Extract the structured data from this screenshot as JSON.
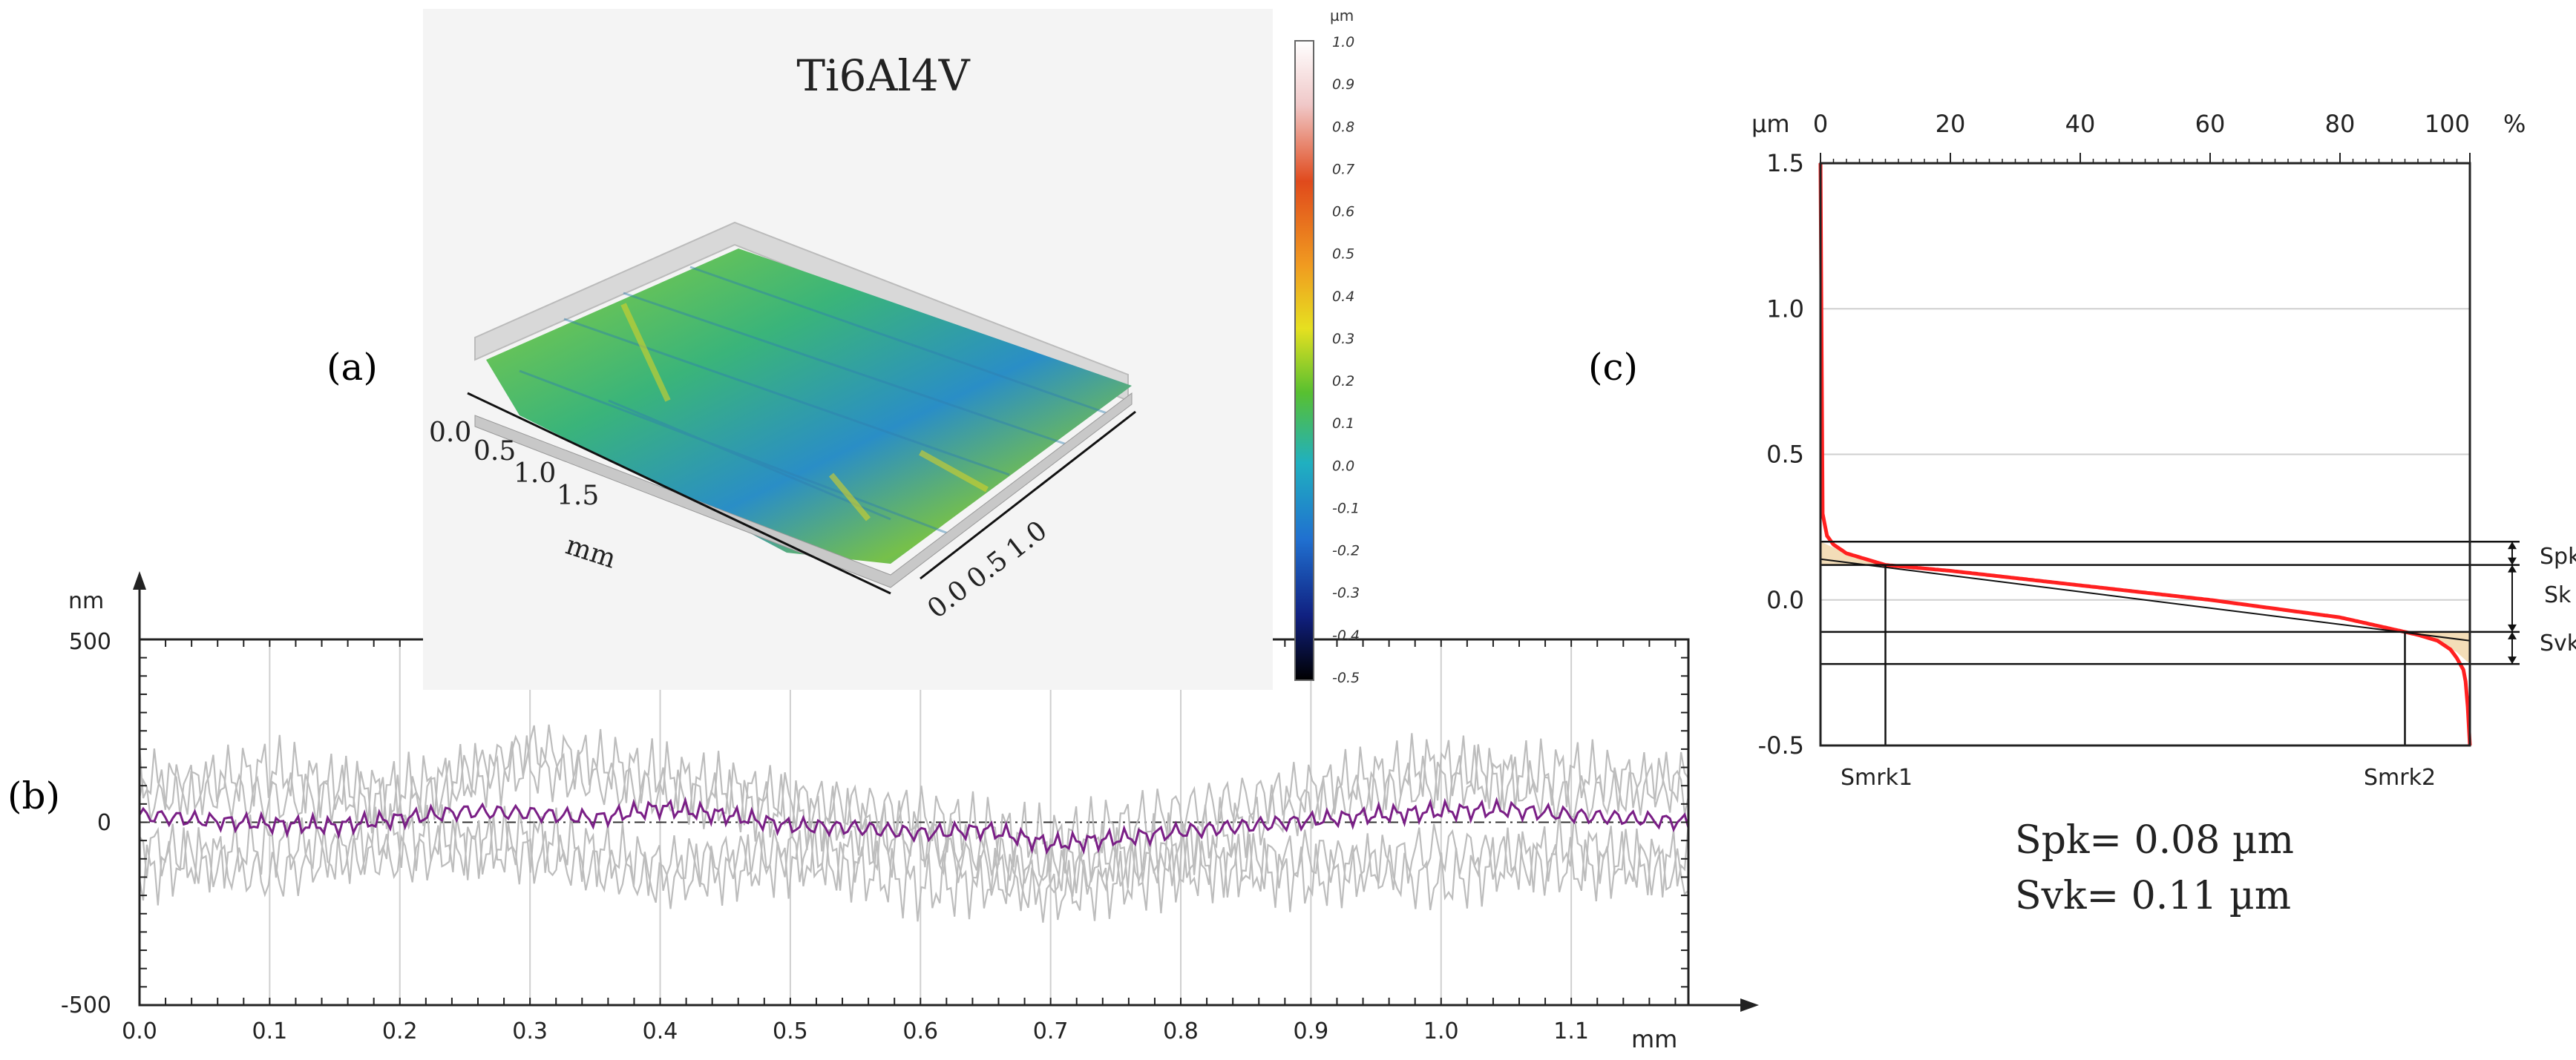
{
  "panel_labels": {
    "a": "(a)",
    "b": "(b)",
    "c": "(c)"
  },
  "colors": {
    "profile_gray": "#bdbdbd",
    "profile_mean": "#7a1f86",
    "curve_red": "#ff2020",
    "fill_tan": "#f3ddb8",
    "grid": "#cfcfcf",
    "inset_bg": "#f4f4f4"
  },
  "inset": {
    "title": "Ti6Al4V",
    "x_axis_ticks": [
      "0.0",
      "0.5",
      "1.0",
      "1.5"
    ],
    "x_axis_unit": "mm",
    "y_axis_ticks": [
      "0.0",
      "0.5",
      "1.0"
    ],
    "colorbar_unit": "µm",
    "colorbar_ticks": [
      "1.0",
      "0.9",
      "0.8",
      "0.7",
      "0.6",
      "0.5",
      "0.4",
      "0.3",
      "0.2",
      "0.1",
      "0.0",
      "-0.1",
      "-0.2",
      "-0.3",
      "-0.4",
      "-0.5"
    ]
  },
  "profile_panel": {
    "y_unit": "nm",
    "x_unit": "mm",
    "y_ticks": [
      "500",
      "0",
      "-500"
    ],
    "x_ticks": [
      "0.0",
      "0.1",
      "0.2",
      "0.3",
      "0.4",
      "0.5",
      "0.6",
      "0.7",
      "0.8",
      "0.9",
      "1.0",
      "1.1"
    ]
  },
  "curve_panel": {
    "y_unit": "µm",
    "x_unit": "%",
    "y_ticks": [
      "1.5",
      "1.0",
      "0.5",
      "0.0",
      "-0.5"
    ],
    "x_ticks": [
      "0",
      "20",
      "40",
      "60",
      "80",
      "100"
    ],
    "region_labels": [
      "Spk",
      "Sk",
      "Svk"
    ],
    "smr_labels": [
      "Smrk1",
      "Smrk2"
    ],
    "results": [
      "Spk= 0.08 µm",
      "Svk= 0.11 µm"
    ]
  },
  "chart_data": [
    {
      "type": "line",
      "title": "",
      "xlabel": "mm",
      "ylabel": "nm",
      "xlim": [
        0,
        1.19
      ],
      "ylim": [
        -500,
        500
      ],
      "grid": true,
      "series": [
        {
          "x": [
            0,
            0.05,
            0.1,
            0.15,
            0.2,
            0.25,
            0.3,
            0.35,
            0.4,
            0.45,
            0.5,
            0.55,
            0.6,
            0.65,
            0.7,
            0.75,
            0.8,
            0.85,
            0.9,
            0.95,
            1.0,
            1.05,
            1.1,
            1.15,
            1.19
          ],
          "values": [
            20,
            5,
            -5,
            -10,
            10,
            30,
            25,
            10,
            40,
            20,
            -10,
            -15,
            -30,
            -20,
            -60,
            -45,
            -25,
            -10,
            5,
            20,
            30,
            35,
            20,
            10,
            0
          ]
        },
        {
          "x": [
            0,
            0.1,
            0.2,
            0.3,
            0.4,
            0.5,
            0.6,
            0.7,
            0.8,
            0.9,
            1.0,
            1.1,
            1.19
          ],
          "values": [
            120,
            60,
            90,
            150,
            80,
            30,
            -40,
            -120,
            -60,
            50,
            110,
            140,
            90
          ]
        },
        {
          "x": [
            0,
            0.1,
            0.2,
            0.3,
            0.4,
            0.5,
            0.6,
            0.7,
            0.8,
            0.9,
            1.0,
            1.1,
            1.19
          ],
          "values": [
            -140,
            -60,
            -100,
            -40,
            -120,
            -80,
            -180,
            -150,
            -90,
            -160,
            -70,
            -130,
            -100
          ]
        },
        {
          "x": [
            0,
            0.1,
            0.2,
            0.3,
            0.4,
            0.5,
            0.6,
            0.7,
            0.8,
            0.9,
            1.0,
            1.1,
            1.19
          ],
          "values": [
            60,
            150,
            40,
            200,
            130,
            60,
            20,
            -50,
            30,
            90,
            160,
            60,
            120
          ]
        },
        {
          "x": [
            0,
            0.1,
            0.2,
            0.3,
            0.4,
            0.5,
            0.6,
            0.7,
            0.8,
            0.9,
            1.0,
            1.1,
            1.19
          ],
          "values": [
            -60,
            -150,
            -30,
            -90,
            -160,
            -110,
            -60,
            -200,
            -140,
            -90,
            -170,
            -60,
            -150
          ]
        }
      ]
    },
    {
      "type": "line",
      "title": "",
      "xlabel": "%",
      "ylabel": "µm",
      "xlim": [
        0,
        100
      ],
      "ylim": [
        -0.5,
        1.5
      ],
      "grid": true,
      "x": [
        0,
        0.3,
        1,
        2,
        4,
        10,
        20,
        40,
        60,
        80,
        88,
        92,
        95,
        97,
        98,
        99,
        99.5,
        100
      ],
      "values": [
        1.5,
        0.3,
        0.22,
        0.19,
        0.16,
        0.12,
        0.1,
        0.05,
        0.0,
        -0.06,
        -0.1,
        -0.12,
        -0.14,
        -0.17,
        -0.2,
        -0.24,
        -0.3,
        -0.5
      ],
      "spk": 0.08,
      "svk": 0.11,
      "sk_upper": 0.12,
      "sk_lower": -0.11,
      "smrk1": 10,
      "smrk2": 90
    }
  ]
}
